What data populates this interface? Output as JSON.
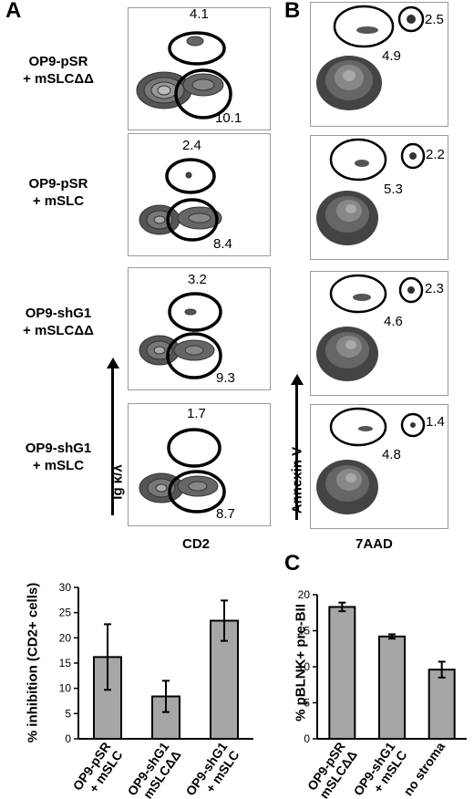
{
  "panels": {
    "a_letter": "A",
    "b_letter": "B",
    "c_letter": "C"
  },
  "flow_a": {
    "x_axis_label": "CD2",
    "y_axis_label": "Ig κ/λ",
    "rows": [
      {
        "label_line1": "OP9-pSR",
        "label_line2": "+ mSLCΔΔ",
        "upper_gate": "4.1",
        "lower_gate": "10.1"
      },
      {
        "label_line1": "OP9-pSR",
        "label_line2": "+ mSLC",
        "upper_gate": "2.4",
        "lower_gate": "8.4"
      },
      {
        "label_line1": "OP9-shG1",
        "label_line2": "+ mSLCΔΔ",
        "upper_gate": "3.2",
        "lower_gate": "9.3"
      },
      {
        "label_line1": "OP9-shG1",
        "label_line2": "+ mSLC",
        "upper_gate": "1.7",
        "lower_gate": "8.7"
      }
    ]
  },
  "flow_b": {
    "x_axis_label": "7AAD",
    "y_axis_label": "Annexin V",
    "rows": [
      {
        "apoptotic_gate": "2.5",
        "early_gate": "4.9"
      },
      {
        "apoptotic_gate": "2.2",
        "early_gate": "5.3"
      },
      {
        "apoptotic_gate": "2.3",
        "early_gate": "4.6"
      },
      {
        "apoptotic_gate": "1.4",
        "early_gate": "4.8"
      }
    ]
  },
  "chart_data": [
    {
      "type": "bar",
      "title": "",
      "ylabel": "% inhibition (CD2+ cells)",
      "xlabel": "",
      "ylim": [
        0,
        30
      ],
      "yticks": [
        "0",
        "5",
        "10",
        "15",
        "20",
        "25",
        "30"
      ],
      "categories": [
        "OP9-pSR + mSLC",
        "OP9-shG1 + mSLCΔΔ",
        "OP9-shG1 + mSLC"
      ],
      "category_lines": [
        [
          "OP9-pSR",
          "+ mSLC"
        ],
        [
          "OP9-shG1",
          "+ mSLCΔΔ"
        ],
        [
          "OP9-shG1",
          "+ mSLC"
        ]
      ],
      "values": [
        16.2,
        8.4,
        23.4
      ],
      "errors": [
        6.5,
        3.1,
        4.0
      ],
      "bar_color": "#a6a6a6"
    },
    {
      "type": "bar",
      "title": "",
      "ylabel": "% pBLNK+ pre-BII",
      "xlabel": "",
      "ylim": [
        0,
        20
      ],
      "yticks": [
        "0",
        "5",
        "10",
        "15",
        "20"
      ],
      "categories": [
        "OP9-pSR + mSLCΔΔ",
        "OP9-shG1 + mSLC",
        "no stroma"
      ],
      "category_lines": [
        [
          "OP9-pSR",
          "+ mSLCΔΔ"
        ],
        [
          "OP9-shG1",
          "+ mSLC"
        ],
        [
          "no stroma",
          ""
        ]
      ],
      "values": [
        18.3,
        14.2,
        9.6
      ],
      "errors": [
        0.6,
        0.3,
        1.1
      ],
      "bar_color": "#a6a6a6"
    }
  ]
}
